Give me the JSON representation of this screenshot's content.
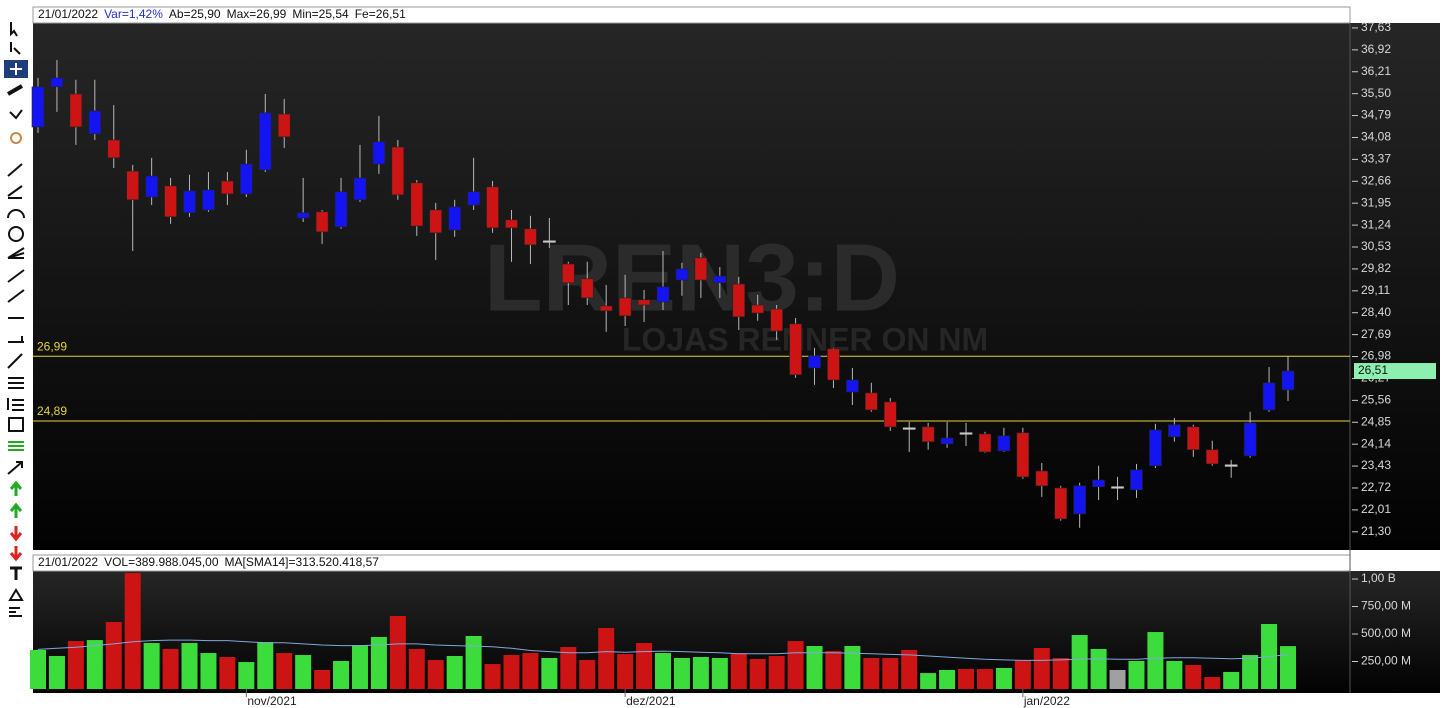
{
  "header": [
    "21/01/2022",
    "Var=1,42%",
    "Ab=25,90",
    "Max=26,99",
    "Min=25,54",
    "Fe=26,51"
  ],
  "volume_header": [
    "21/01/2022",
    "VOL=389.988.045,00",
    "MA[SMA14]=313.520.418,57"
  ],
  "watermark": [
    "LREN3:D",
    "LOJAS RENNER ON NM"
  ],
  "chart_data": [
    {
      "type": "candlestick",
      "open": [
        34.42,
        35.72,
        35.49,
        34.2,
        34.0,
        32.99,
        32.15,
        32.51,
        31.64,
        31.73,
        32.67,
        32.25,
        33.03,
        34.84,
        31.47,
        31.67,
        31.18,
        32.06,
        33.22,
        33.77,
        32.61,
        31.73,
        31.08,
        31.89,
        32.48,
        31.41,
        31.12,
        30.73,
        29.98,
        29.5,
        28.62,
        28.88,
        28.82,
        28.75,
        29.46,
        30.18,
        29.37,
        29.33,
        28.65,
        28.52,
        28.04,
        26.61,
        27.23,
        25.83,
        25.8,
        25.51,
        24.67,
        24.7,
        24.15,
        24.51,
        24.47,
        23.92,
        24.51,
        23.27,
        22.72,
        21.88,
        22.76,
        22.76,
        22.66,
        23.44,
        24.38,
        24.7,
        23.96,
        23.47,
        23.76,
        25.25,
        25.9
      ],
      "high": [
        36.01,
        36.59,
        35.95,
        35.95,
        35.13,
        33.19,
        33.42,
        32.77,
        32.87,
        32.96,
        32.96,
        33.68,
        35.49,
        35.33,
        32.77,
        31.73,
        32.77,
        33.84,
        34.78,
        34.0,
        32.7,
        31.96,
        32.06,
        33.42,
        32.67,
        31.73,
        31.54,
        31.47,
        30.05,
        30.05,
        29.3,
        29.63,
        29.14,
        30.4,
        30.02,
        30.34,
        29.88,
        29.56,
        28.98,
        28.65,
        28.23,
        27.26,
        27.26,
        26.61,
        26.13,
        25.64,
        24.86,
        24.83,
        24.86,
        24.83,
        24.54,
        24.67,
        24.67,
        23.53,
        22.79,
        22.89,
        23.44,
        23.08,
        23.5,
        24.8,
        24.99,
        24.77,
        24.25,
        23.63,
        25.19,
        26.64,
        26.99
      ],
      "low": [
        34.23,
        34.91,
        33.84,
        34.0,
        33.09,
        30.4,
        31.89,
        31.28,
        31.51,
        31.67,
        31.89,
        32.15,
        32.96,
        33.74,
        31.34,
        30.63,
        31.12,
        31.99,
        32.9,
        32.06,
        30.89,
        30.11,
        30.86,
        31.73,
        30.99,
        30.05,
        29.98,
        30.5,
        28.65,
        28.65,
        27.78,
        27.97,
        28.1,
        28.49,
        28.95,
        28.88,
        28.88,
        27.84,
        28.14,
        27.52,
        26.29,
        26.06,
        25.96,
        25.41,
        25.19,
        24.57,
        23.89,
        23.96,
        24.02,
        24.08,
        23.86,
        23.89,
        23.02,
        22.43,
        21.66,
        21.43,
        22.33,
        22.33,
        22.4,
        23.37,
        24.22,
        23.73,
        23.44,
        23.05,
        23.7,
        25.19,
        25.54
      ],
      "close": [
        35.72,
        36.01,
        34.42,
        34.94,
        33.42,
        32.06,
        32.83,
        31.51,
        32.35,
        32.38,
        32.25,
        33.22,
        34.88,
        34.1,
        31.64,
        31.02,
        32.32,
        32.77,
        33.94,
        32.22,
        31.21,
        30.99,
        31.83,
        32.32,
        31.15,
        31.15,
        30.6,
        30.73,
        29.37,
        28.88,
        28.46,
        28.3,
        28.65,
        29.24,
        29.82,
        29.46,
        29.59,
        28.27,
        28.39,
        27.81,
        26.39,
        27.0,
        26.22,
        26.22,
        25.25,
        24.7,
        24.67,
        24.22,
        24.34,
        24.51,
        23.89,
        24.41,
        23.08,
        22.79,
        21.72,
        22.79,
        22.98,
        22.76,
        23.31,
        24.6,
        24.77,
        23.96,
        23.5,
        23.47,
        24.83,
        26.13,
        26.51
      ],
      "up_color": "#1414f0",
      "down_color": "#cc1414",
      "flat_color": "#c8c8c8",
      "ylim": [
        20.71,
        37.79
      ],
      "yticks": [
        {
          "value": 37.63,
          "label": "37,63"
        },
        {
          "value": 36.92,
          "label": "36,92"
        },
        {
          "value": 36.21,
          "label": "36,21"
        },
        {
          "value": 35.5,
          "label": "35,50"
        },
        {
          "value": 34.79,
          "label": "34,79"
        },
        {
          "value": 34.08,
          "label": "34,08"
        },
        {
          "value": 33.37,
          "label": "33,37"
        },
        {
          "value": 32.66,
          "label": "32,66"
        },
        {
          "value": 31.95,
          "label": "31,95"
        },
        {
          "value": 31.24,
          "label": "31,24"
        },
        {
          "value": 30.53,
          "label": "30,53"
        },
        {
          "value": 29.82,
          "label": "29,82"
        },
        {
          "value": 29.11,
          "label": "29,11"
        },
        {
          "value": 28.4,
          "label": "28,40"
        },
        {
          "value": 27.69,
          "label": "27,69"
        },
        {
          "value": 26.98,
          "label": "26,98"
        },
        {
          "value": 26.27,
          "label": "26,27"
        },
        {
          "value": 25.56,
          "label": "25,56"
        },
        {
          "value": 24.85,
          "label": "24,85"
        },
        {
          "value": 24.14,
          "label": "24,14"
        },
        {
          "value": 23.43,
          "label": "23,43"
        },
        {
          "value": 22.72,
          "label": "22,72"
        },
        {
          "value": 22.01,
          "label": "22,01"
        },
        {
          "value": 21.3,
          "label": "21,30"
        }
      ],
      "hlines": [
        {
          "value": 26.99,
          "label": "26,99"
        },
        {
          "value": 24.89,
          "label": "24,89"
        }
      ],
      "hline_color": "#e6d23c",
      "last_price": {
        "value": 26.51,
        "label": "26,51"
      },
      "last_price_color": "#8ef0b0"
    },
    {
      "type": "bar",
      "categories": [
        null,
        null,
        null,
        null,
        null,
        null,
        null,
        null,
        null,
        null,
        null,
        "nov/2021",
        null,
        null,
        null,
        null,
        null,
        null,
        null,
        null,
        null,
        null,
        null,
        null,
        null,
        null,
        null,
        null,
        null,
        null,
        null,
        "dez/2021",
        null,
        null,
        null,
        null,
        null,
        null,
        null,
        null,
        null,
        null,
        null,
        null,
        null,
        null,
        null,
        null,
        null,
        null,
        null,
        null,
        "jan/2022",
        null,
        null,
        null,
        null,
        null,
        null,
        null,
        null,
        null,
        null,
        null,
        null,
        null,
        null
      ],
      "values": [
        355000000,
        300000000,
        436000000,
        445000000,
        609000000,
        1055000000,
        418000000,
        364000000,
        418000000,
        327000000,
        291000000,
        245000000,
        427000000,
        327000000,
        309000000,
        173000000,
        255000000,
        400000000,
        473000000,
        664000000,
        364000000,
        264000000,
        300000000,
        482000000,
        227000000,
        309000000,
        327000000,
        282000000,
        382000000,
        264000000,
        555000000,
        318000000,
        418000000,
        327000000,
        282000000,
        291000000,
        282000000,
        327000000,
        273000000,
        300000000,
        436000000,
        391000000,
        345000000,
        391000000,
        282000000,
        282000000,
        355000000,
        145000000,
        173000000,
        182000000,
        182000000,
        191000000,
        264000000,
        373000000,
        282000000,
        491000000,
        364000000,
        173000000,
        255000000,
        518000000,
        255000000,
        218000000,
        109000000,
        155000000,
        309000000,
        591000000,
        389988045
      ],
      "colors": [
        "#3ddc3d",
        "#3ddc3d",
        "#cc1414",
        "#3ddc3d",
        "#cc1414",
        "#cc1414",
        "#3ddc3d",
        "#cc1414",
        "#3ddc3d",
        "#3ddc3d",
        "#cc1414",
        "#3ddc3d",
        "#3ddc3d",
        "#cc1414",
        "#3ddc3d",
        "#cc1414",
        "#3ddc3d",
        "#3ddc3d",
        "#3ddc3d",
        "#cc1414",
        "#cc1414",
        "#cc1414",
        "#3ddc3d",
        "#3ddc3d",
        "#cc1414",
        "#cc1414",
        "#cc1414",
        "#3ddc3d",
        "#cc1414",
        "#cc1414",
        "#cc1414",
        "#cc1414",
        "#cc1414",
        "#3ddc3d",
        "#3ddc3d",
        "#3ddc3d",
        "#3ddc3d",
        "#cc1414",
        "#cc1414",
        "#cc1414",
        "#cc1414",
        "#3ddc3d",
        "#cc1414",
        "#3ddc3d",
        "#cc1414",
        "#cc1414",
        "#cc1414",
        "#3ddc3d",
        "#3ddc3d",
        "#cc1414",
        "#cc1414",
        "#3ddc3d",
        "#cc1414",
        "#cc1414",
        "#cc1414",
        "#3ddc3d",
        "#3ddc3d",
        "#a0a0a0",
        "#3ddc3d",
        "#3ddc3d",
        "#3ddc3d",
        "#cc1414",
        "#cc1414",
        "#3ddc3d",
        "#3ddc3d",
        "#3ddc3d",
        "#3ddc3d"
      ],
      "ma": [
        360000000,
        370000000,
        380000000,
        395000000,
        410000000,
        430000000,
        440000000,
        445000000,
        445000000,
        440000000,
        440000000,
        430000000,
        420000000,
        420000000,
        410000000,
        400000000,
        395000000,
        395000000,
        400000000,
        410000000,
        410000000,
        400000000,
        395000000,
        390000000,
        385000000,
        370000000,
        350000000,
        340000000,
        330000000,
        330000000,
        340000000,
        335000000,
        340000000,
        345000000,
        340000000,
        335000000,
        330000000,
        320000000,
        320000000,
        320000000,
        330000000,
        330000000,
        330000000,
        325000000,
        320000000,
        315000000,
        310000000,
        300000000,
        290000000,
        280000000,
        270000000,
        265000000,
        260000000,
        260000000,
        265000000,
        270000000,
        275000000,
        270000000,
        270000000,
        280000000,
        285000000,
        285000000,
        280000000,
        275000000,
        280000000,
        295000000,
        313520418.57
      ],
      "ma_color": "#7fa8e0",
      "ylim": [
        0,
        1073000000
      ],
      "yticks": [
        {
          "value": 1000000000,
          "label": "1,00 B"
        },
        {
          "value": 750000000,
          "label": "750,00 M"
        },
        {
          "value": 500000000,
          "label": "500,00 M"
        },
        {
          "value": 250000000,
          "label": "250,00 M"
        }
      ]
    }
  ]
}
